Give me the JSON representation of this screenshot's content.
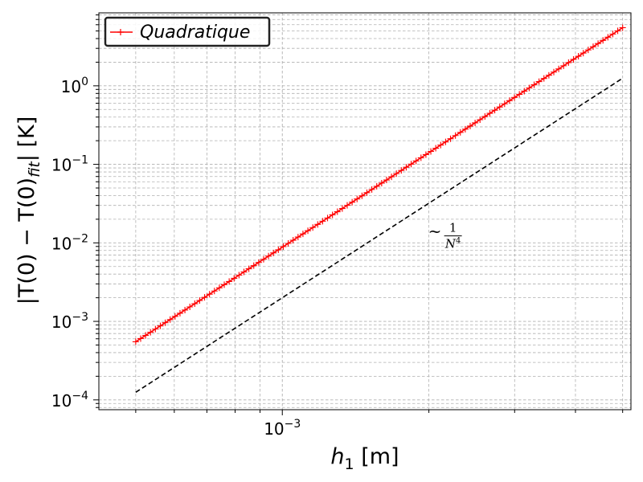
{
  "chart_data": {
    "type": "line",
    "xscale": "log",
    "yscale": "log",
    "xlim": [
      0.00042,
      0.0052
    ],
    "ylim": [
      7.5e-05,
      8.5
    ],
    "grid": true,
    "grid_minor": true,
    "legend_position": "top-left",
    "xlabel": {
      "main": "h",
      "sub": "1",
      "unit": " [m]"
    },
    "ylabel": {
      "pre": "|T(0) − T(0)",
      "sub": "fit",
      "post": "| [K]"
    },
    "x_ticks": [
      {
        "value": 0.001,
        "mantissa": "10",
        "exponent": "−3"
      }
    ],
    "y_ticks": [
      {
        "value": 0.0001,
        "mantissa": "10",
        "exponent": "−4"
      },
      {
        "value": 0.001,
        "mantissa": "10",
        "exponent": "−3"
      },
      {
        "value": 0.01,
        "mantissa": "10",
        "exponent": "−2"
      },
      {
        "value": 0.1,
        "mantissa": "10",
        "exponent": "−1"
      },
      {
        "value": 1,
        "mantissa": "10",
        "exponent": "0"
      }
    ],
    "series": [
      {
        "name": "Quadratique",
        "color": "#ff0000",
        "marker": "+",
        "style": "solid",
        "x_start": 0.0005,
        "x_end": 0.005,
        "n_points": 100,
        "y_start": 0.00055,
        "y_end": 5.0,
        "slope": 4
      },
      {
        "name": "",
        "color": "#000000",
        "style": "dashed",
        "x_start": 0.0005,
        "x_end": 0.005,
        "y_start": 0.000125,
        "y_end": 1.25,
        "slope": 4
      }
    ],
    "annotation": {
      "prefix": "~",
      "numerator": "1",
      "denominator_base": "N",
      "denominator_exp": "4",
      "x": 0.002,
      "y": 0.012
    }
  }
}
